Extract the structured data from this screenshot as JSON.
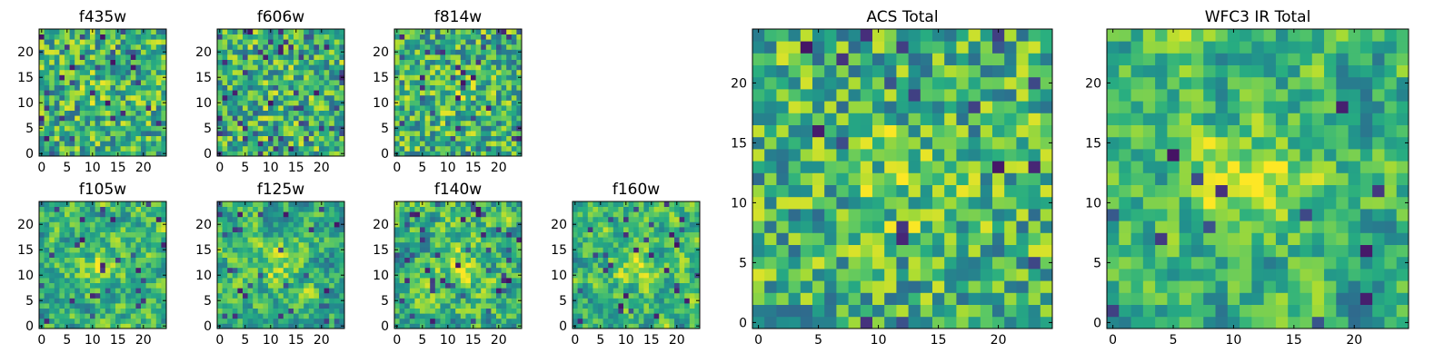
{
  "chart_data": [
    {
      "type": "heatmap",
      "title": "f435w",
      "grid_size": 25,
      "colormap": "viridis",
      "xlim": [
        0,
        24
      ],
      "ylim": [
        0,
        24
      ],
      "xticks": [
        "0",
        "5",
        "10",
        "15",
        "20"
      ],
      "yticks": [
        "0",
        "5",
        "10",
        "15",
        "20"
      ],
      "seed": 11,
      "smooth": 0,
      "center_peak": 0.06,
      "dark_fraction": 0.06
    },
    {
      "type": "heatmap",
      "title": "f606w",
      "grid_size": 25,
      "colormap": "viridis",
      "xlim": [
        0,
        24
      ],
      "ylim": [
        0,
        24
      ],
      "xticks": [
        "0",
        "5",
        "10",
        "15",
        "20"
      ],
      "yticks": [
        "0",
        "5",
        "10",
        "15",
        "20"
      ],
      "seed": 23,
      "smooth": 0,
      "center_peak": 0.05,
      "dark_fraction": 0.08
    },
    {
      "type": "heatmap",
      "title": "f814w",
      "grid_size": 25,
      "colormap": "viridis",
      "xlim": [
        0,
        24
      ],
      "ylim": [
        0,
        24
      ],
      "xticks": [
        "0",
        "5",
        "10",
        "15",
        "20"
      ],
      "yticks": [
        "0",
        "5",
        "10",
        "15",
        "20"
      ],
      "seed": 37,
      "smooth": 0,
      "center_peak": 0.08,
      "dark_fraction": 0.06
    },
    {
      "type": "heatmap",
      "title": "f105w",
      "grid_size": 25,
      "colormap": "viridis",
      "xlim": [
        0,
        24
      ],
      "ylim": [
        0,
        24
      ],
      "xticks": [
        "0",
        "5",
        "10",
        "15",
        "20"
      ],
      "yticks": [
        "0",
        "5",
        "10",
        "15",
        "20"
      ],
      "seed": 41,
      "smooth": 1,
      "center_peak": 0.22,
      "dark_fraction": 0.05
    },
    {
      "type": "heatmap",
      "title": "f125w",
      "grid_size": 25,
      "colormap": "viridis",
      "xlim": [
        0,
        24
      ],
      "ylim": [
        0,
        24
      ],
      "xticks": [
        "0",
        "5",
        "10",
        "15",
        "20"
      ],
      "yticks": [
        "0",
        "5",
        "10",
        "15",
        "20"
      ],
      "seed": 53,
      "smooth": 1,
      "center_peak": 0.18,
      "dark_fraction": 0.06
    },
    {
      "type": "heatmap",
      "title": "f140w",
      "grid_size": 25,
      "colormap": "viridis",
      "xlim": [
        0,
        24
      ],
      "ylim": [
        0,
        24
      ],
      "xticks": [
        "0",
        "5",
        "10",
        "15",
        "20"
      ],
      "yticks": [
        "0",
        "5",
        "10",
        "15",
        "20"
      ],
      "seed": 67,
      "smooth": 1,
      "center_peak": 0.2,
      "dark_fraction": 0.05
    },
    {
      "type": "heatmap",
      "title": "f160w",
      "grid_size": 25,
      "colormap": "viridis",
      "xlim": [
        0,
        24
      ],
      "ylim": [
        0,
        24
      ],
      "xticks": [
        "0",
        "5",
        "10",
        "15",
        "20"
      ],
      "yticks": [
        "0",
        "5",
        "10",
        "15",
        "20"
      ],
      "seed": 79,
      "smooth": 1,
      "center_peak": 0.22,
      "dark_fraction": 0.06
    },
    {
      "type": "heatmap",
      "title": "ACS Total",
      "grid_size": 25,
      "colormap": "viridis",
      "xlim": [
        0,
        24
      ],
      "ylim": [
        0,
        24
      ],
      "xticks": [
        "0",
        "5",
        "10",
        "15",
        "20"
      ],
      "yticks": [
        "0",
        "5",
        "10",
        "15",
        "20"
      ],
      "seed": 97,
      "smooth": 0,
      "center_peak": 0.12,
      "dark_fraction": 0.035
    },
    {
      "type": "heatmap",
      "title": "WFC3 IR Total",
      "grid_size": 25,
      "colormap": "viridis",
      "xlim": [
        0,
        24
      ],
      "ylim": [
        0,
        24
      ],
      "xticks": [
        "0",
        "5",
        "10",
        "15",
        "20"
      ],
      "yticks": [
        "0",
        "5",
        "10",
        "15",
        "20"
      ],
      "seed": 131,
      "smooth": 1,
      "center_peak": 0.32,
      "dark_fraction": 0.03
    }
  ]
}
